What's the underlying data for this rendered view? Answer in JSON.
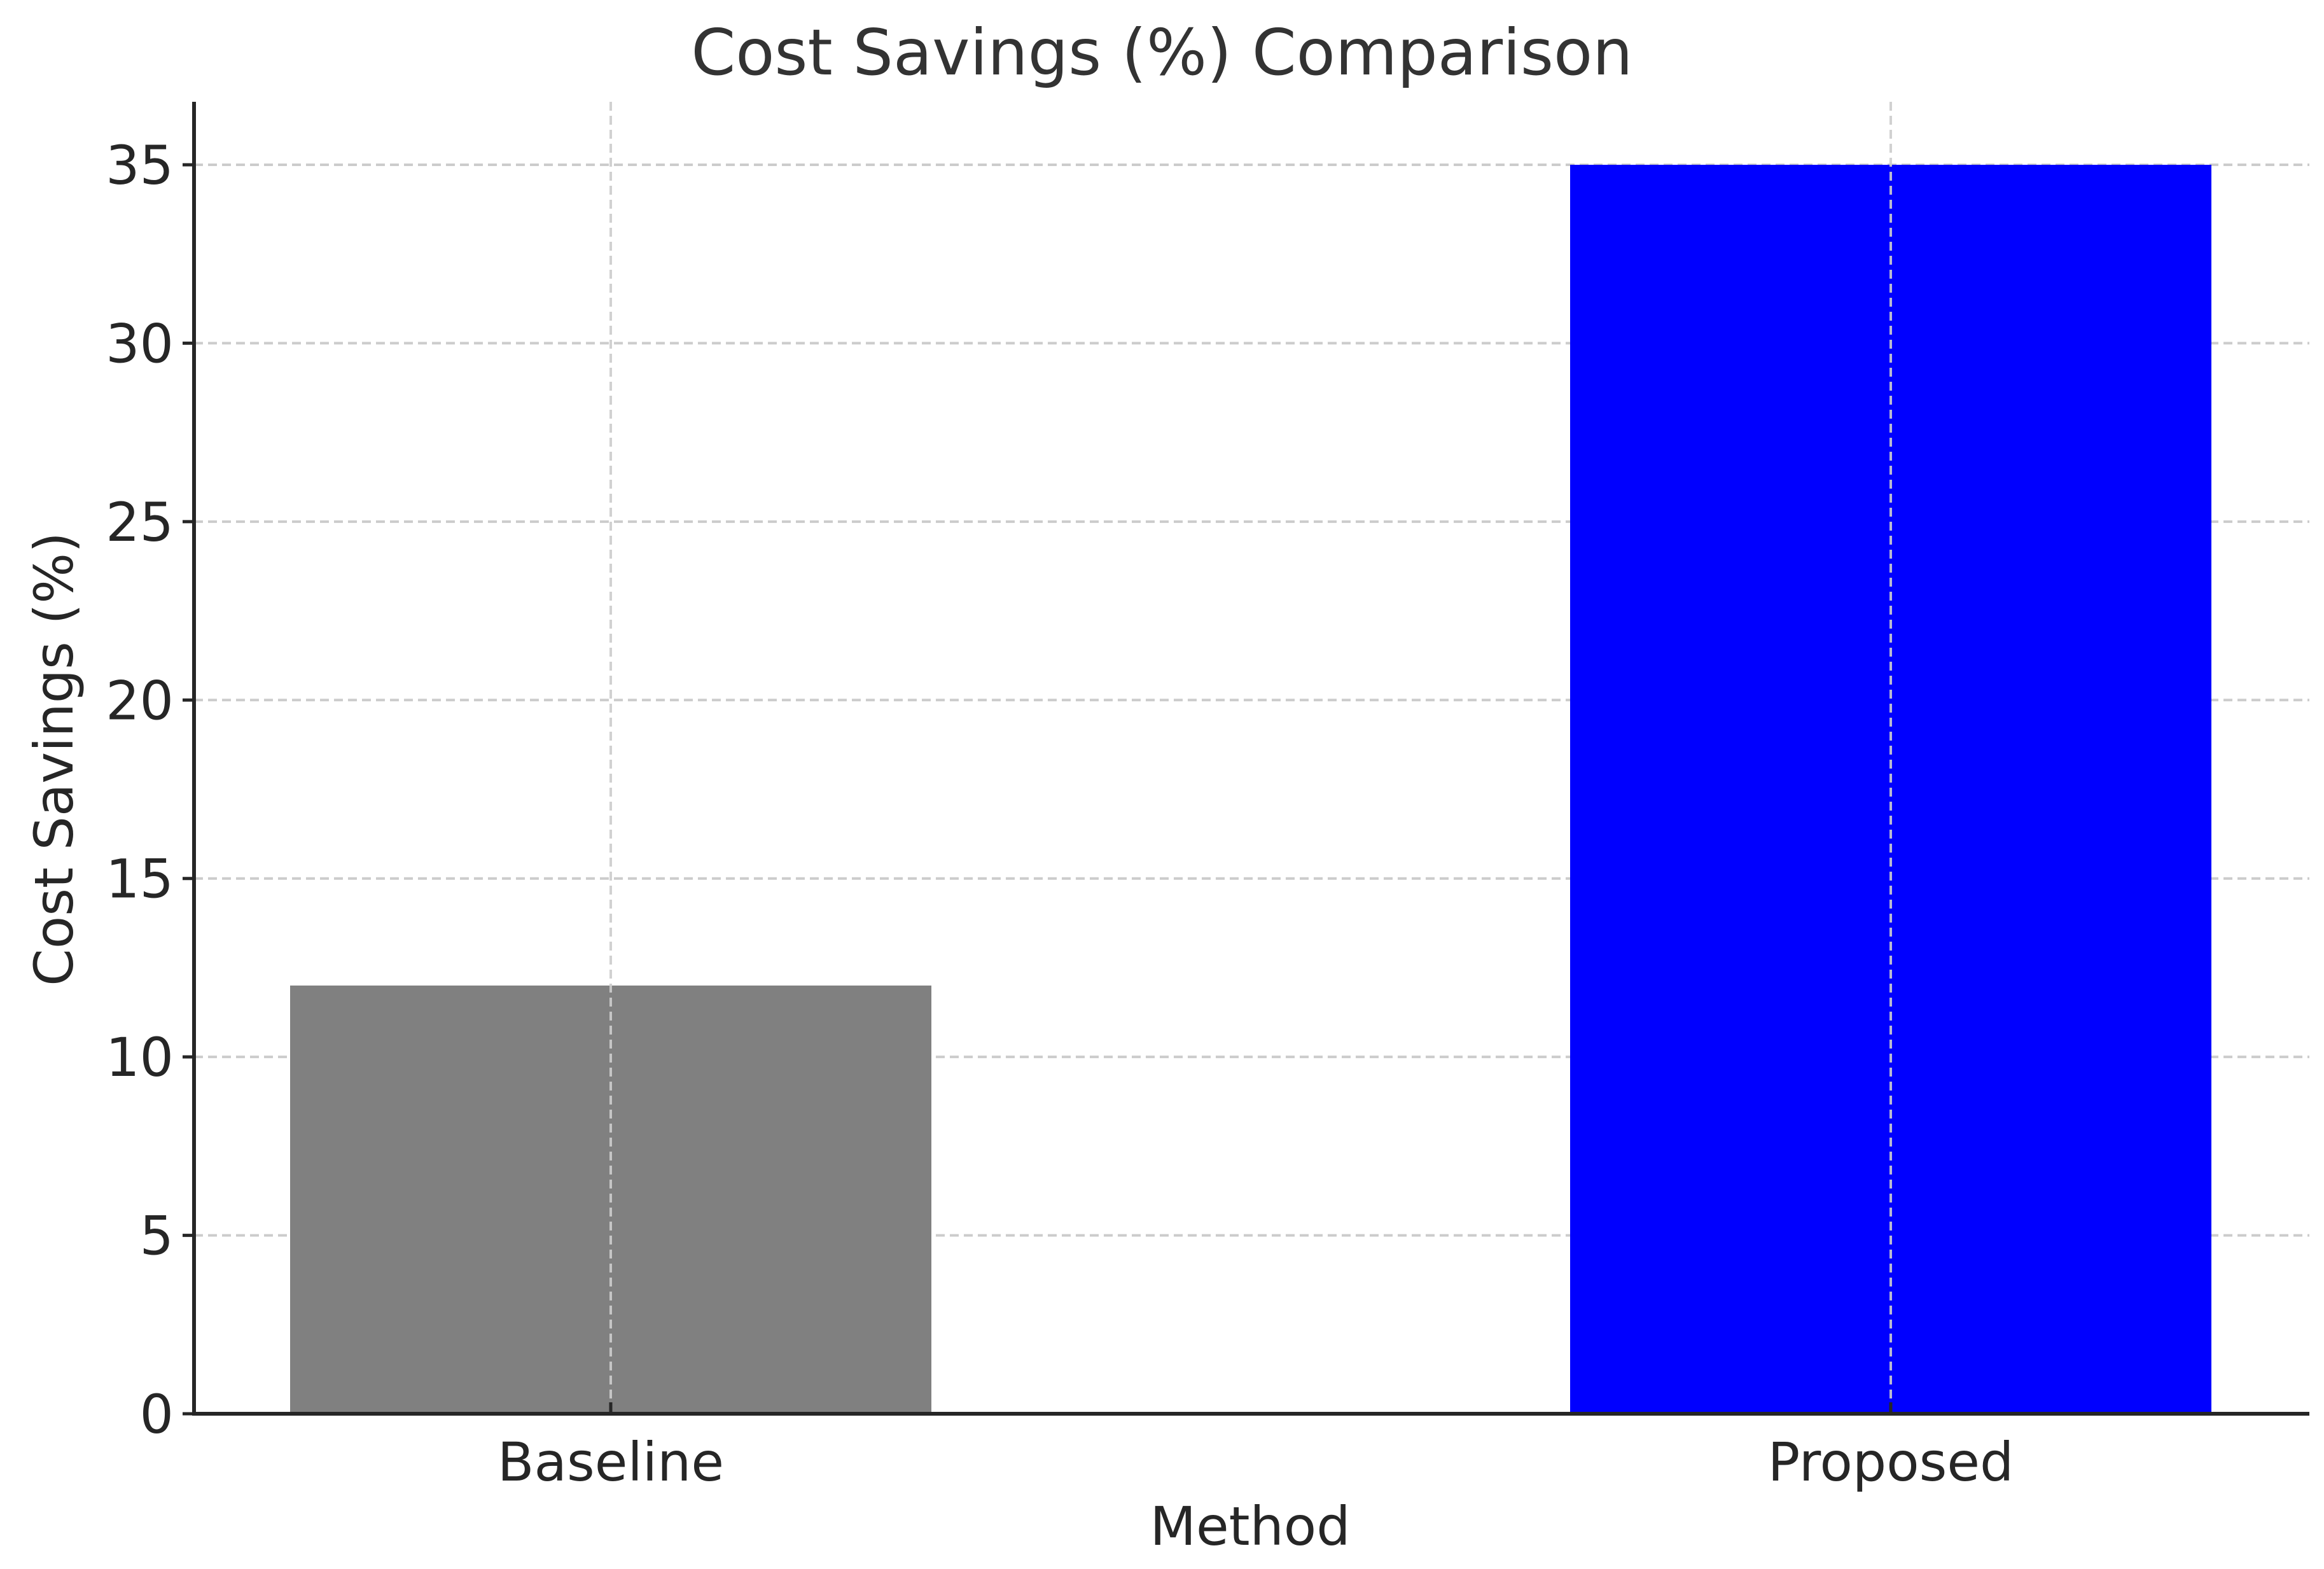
{
  "chart_data": {
    "type": "bar",
    "title": "Cost Savings (%) Comparison",
    "xlabel": "Method",
    "ylabel": "Cost Savings (%)",
    "categories": [
      "Baseline",
      "Proposed"
    ],
    "values": [
      12,
      35
    ],
    "colors": [
      "#808080",
      "#0000ff"
    ],
    "ylim": [
      0,
      36.75
    ],
    "yticks": [
      0,
      5,
      10,
      15,
      20,
      25,
      30,
      35
    ],
    "grid": true,
    "grid_style": "dashed",
    "legend": null
  },
  "colors": {
    "axis": "#262626",
    "grid": "#cccccc",
    "baseline_bar": "#808080",
    "proposed_bar": "#0000ff"
  }
}
